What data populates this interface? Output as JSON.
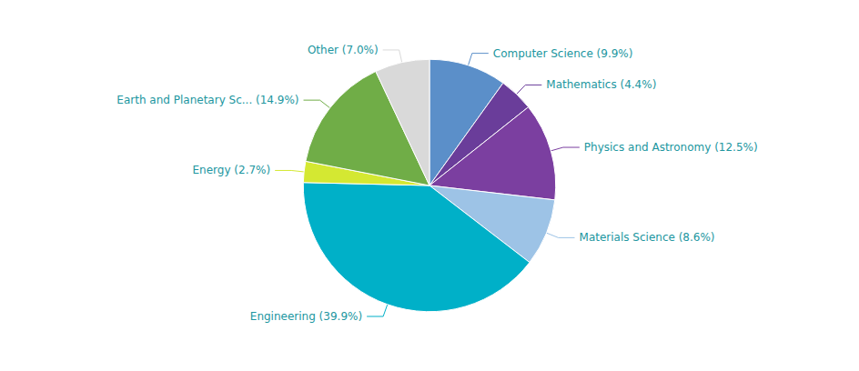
{
  "chart_data": {
    "type": "pie",
    "categories": [
      "Computer Science (9.9%)",
      "Mathematics (4.4%)",
      "Physics and Astronomy (12.5%)",
      "Materials Science (8.6%)",
      "Engineering (39.9%)",
      "Energy (2.7%)",
      "Earth and Planetary Sc... (14.9%)",
      "Other (7.0%)"
    ],
    "values": [
      9.9,
      4.4,
      12.5,
      8.6,
      39.9,
      2.7,
      14.9,
      7.0
    ],
    "colors": [
      "#5b8fc9",
      "#6a3d9a",
      "#7B3FA0",
      "#9dc3e6",
      "#00b0c8",
      "#d4e832",
      "#70ad47",
      "#d9d9d9"
    ]
  }
}
